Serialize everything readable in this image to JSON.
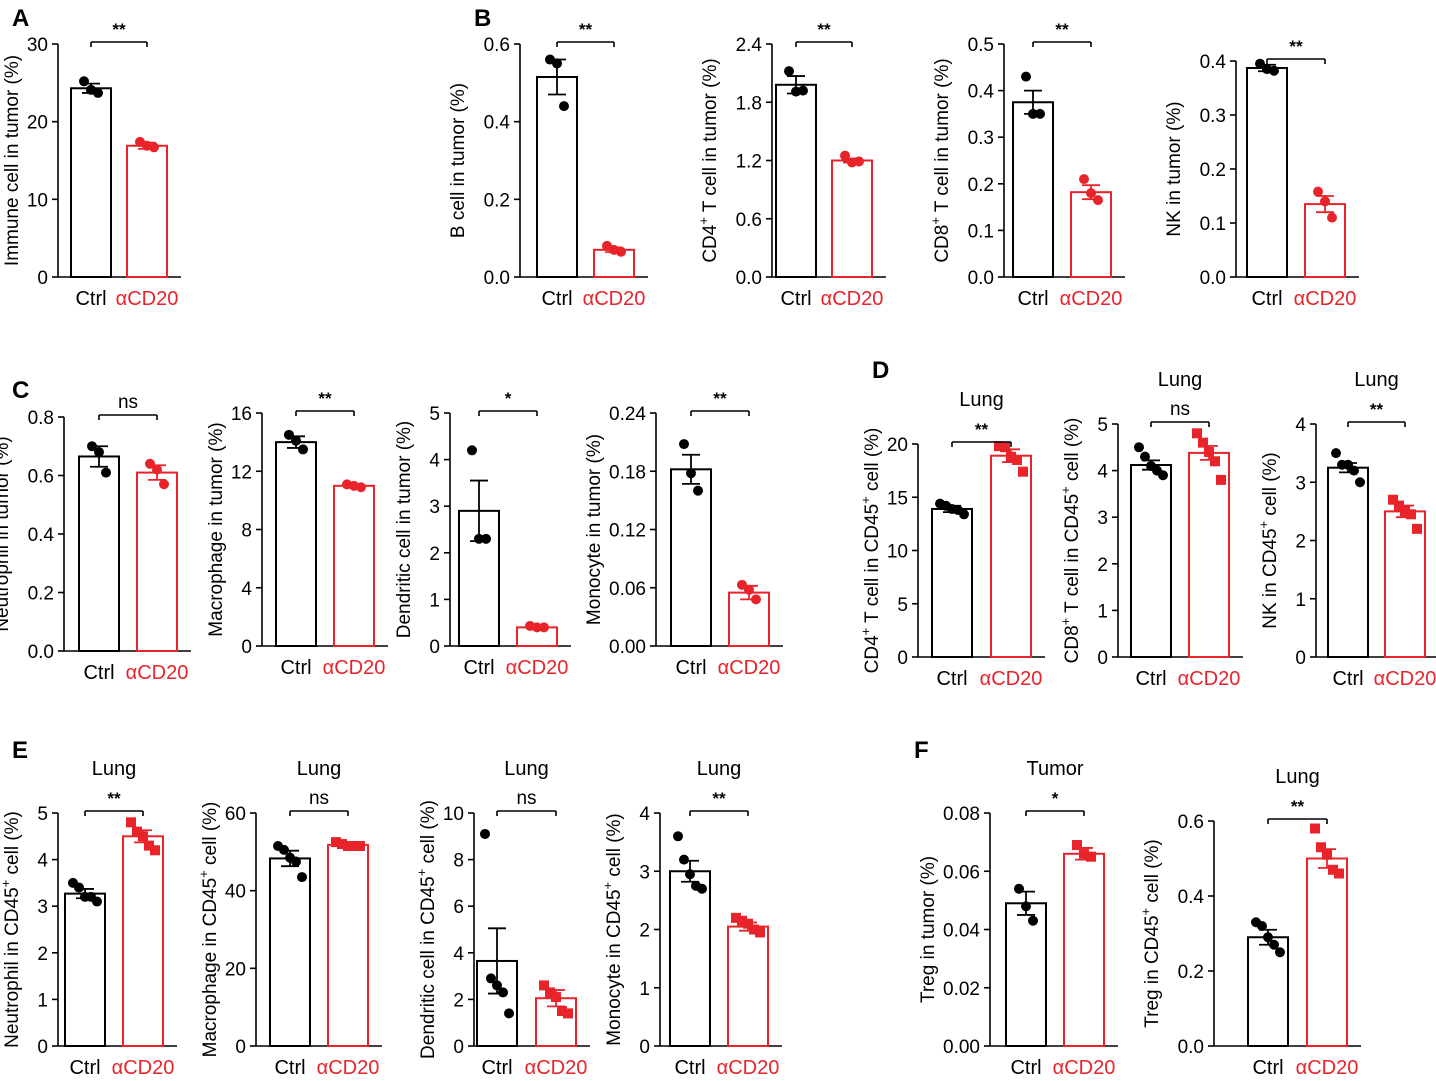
{
  "colors": {
    "ctrl": "#000000",
    "treat": "#e8232a",
    "axis": "#000000"
  },
  "chart_data": [
    {
      "type": "bar",
      "panel": "A",
      "title": "",
      "ylabel": "Immune cell in tumor (%)",
      "ylim": [
        0,
        30
      ],
      "yticks": [
        "0",
        "10",
        "20",
        "30"
      ],
      "categories": [
        "Ctrl",
        "αCD20"
      ],
      "values": [
        24.3,
        16.9
      ],
      "errors": [
        0.6,
        0.4
      ],
      "points": [
        [
          25.2,
          24.1,
          23.7
        ],
        [
          17.4,
          16.9,
          16.7
        ]
      ],
      "point_shape": "circle",
      "significance": "**"
    },
    {
      "type": "bar",
      "panel": "B",
      "title": "",
      "ylabel": "B cell in tumor (%)",
      "ylim": [
        0,
        0.6
      ],
      "yticks": [
        "0.0",
        "0.2",
        "0.4",
        "0.6"
      ],
      "categories": [
        "Ctrl",
        "αCD20"
      ],
      "values": [
        0.515,
        0.07
      ],
      "errors": [
        0.045,
        0.006
      ],
      "points": [
        [
          0.56,
          0.55,
          0.44
        ],
        [
          0.08,
          0.07,
          0.065
        ]
      ],
      "point_shape": "circle",
      "significance": "**"
    },
    {
      "type": "bar",
      "panel": "",
      "title": "",
      "ylabel_main": "CD4",
      "ylabel_sup": "+",
      "ylabel_rest": " T cell in tumor (%)",
      "ylim": [
        0,
        2.4
      ],
      "yticks": [
        "0.0",
        "0.6",
        "1.2",
        "1.8",
        "2.4"
      ],
      "categories": [
        "Ctrl",
        "αCD20"
      ],
      "values": [
        1.98,
        1.2
      ],
      "errors": [
        0.09,
        0.02
      ],
      "points": [
        [
          2.12,
          1.91,
          1.92
        ],
        [
          1.25,
          1.18,
          1.19
        ]
      ],
      "point_shape": "circle",
      "significance": "**"
    },
    {
      "type": "bar",
      "panel": "",
      "title": "",
      "ylabel_main": "CD8",
      "ylabel_sup": "+",
      "ylabel_rest": " T cell in tumor (%)",
      "ylim": [
        0,
        0.5
      ],
      "yticks": [
        "0.0",
        "0.1",
        "0.2",
        "0.3",
        "0.4",
        "0.5"
      ],
      "categories": [
        "Ctrl",
        "αCD20"
      ],
      "values": [
        0.375,
        0.182
      ],
      "errors": [
        0.025,
        0.015
      ],
      "points": [
        [
          0.43,
          0.35,
          0.35
        ],
        [
          0.21,
          0.18,
          0.165
        ]
      ],
      "point_shape": "circle",
      "significance": "**"
    },
    {
      "type": "bar",
      "panel": "",
      "title": "",
      "ylabel": "NK in tumor (%)",
      "ylim": [
        0,
        0.4
      ],
      "yticks": [
        "0.0",
        "0.1",
        "0.2",
        "0.3",
        "0.4"
      ],
      "categories": [
        "Ctrl",
        "αCD20"
      ],
      "values": [
        0.387,
        0.135
      ],
      "errors": [
        0.006,
        0.015
      ],
      "points": [
        [
          0.395,
          0.385,
          0.382
        ],
        [
          0.158,
          0.14,
          0.11
        ]
      ],
      "point_shape": "circle",
      "significance": "**"
    },
    {
      "type": "bar",
      "panel": "C",
      "title": "",
      "ylabel": "Neutrophil in tumor (%)",
      "ylim": [
        0,
        0.8
      ],
      "yticks": [
        "0.0",
        "0.2",
        "0.4",
        "0.6",
        "0.8"
      ],
      "categories": [
        "Ctrl",
        "αCD20"
      ],
      "values": [
        0.665,
        0.61
      ],
      "errors": [
        0.035,
        0.025
      ],
      "points": [
        [
          0.7,
          0.68,
          0.61
        ],
        [
          0.64,
          0.62,
          0.57
        ]
      ],
      "point_shape": "circle",
      "significance": "ns"
    },
    {
      "type": "bar",
      "panel": "",
      "title": "",
      "ylabel": "Macrophage in tumor (%)",
      "ylim": [
        0,
        16
      ],
      "yticks": [
        "0",
        "4",
        "8",
        "12",
        "16"
      ],
      "categories": [
        "Ctrl",
        "αCD20"
      ],
      "values": [
        14.0,
        11.0
      ],
      "errors": [
        0.4,
        0.1
      ],
      "points": [
        [
          14.5,
          14.1,
          13.5
        ],
        [
          11.1,
          11.0,
          10.9
        ]
      ],
      "point_shape": "circle",
      "significance": "**"
    },
    {
      "type": "bar",
      "panel": "",
      "title": "",
      "ylabel": "Dendritic cell in tumor (%)",
      "ylim": [
        0,
        5
      ],
      "yticks": [
        "0",
        "1",
        "2",
        "3",
        "4",
        "5"
      ],
      "categories": [
        "Ctrl",
        "αCD20"
      ],
      "values": [
        2.9,
        0.4
      ],
      "errors": [
        0.65,
        0.03
      ],
      "points": [
        [
          4.2,
          2.3,
          2.3
        ],
        [
          0.43,
          0.4,
          0.4
        ]
      ],
      "point_shape": "circle",
      "significance": "*"
    },
    {
      "type": "bar",
      "panel": "",
      "title": "",
      "ylabel": "Monocyte in tumor (%)",
      "ylim": [
        0,
        0.24
      ],
      "yticks": [
        "0.00",
        "0.06",
        "0.12",
        "0.18",
        "0.24"
      ],
      "categories": [
        "Ctrl",
        "αCD20"
      ],
      "values": [
        0.182,
        0.055
      ],
      "errors": [
        0.015,
        0.007
      ],
      "points": [
        [
          0.208,
          0.178,
          0.16
        ],
        [
          0.063,
          0.058,
          0.048
        ]
      ],
      "point_shape": "circle",
      "significance": "**"
    },
    {
      "type": "bar",
      "panel": "D",
      "title": "Lung",
      "ylabel_main": "CD4",
      "ylabel_sup": "+",
      "ylabel_rest": " T cell in CD45",
      "ylabel_sup2": "+",
      "ylabel_rest2": " cell (%)",
      "ylim": [
        0,
        20
      ],
      "yticks": [
        "0",
        "5",
        "10",
        "15",
        "20"
      ],
      "categories": [
        "Ctrl",
        "αCD20"
      ],
      "values": [
        13.9,
        18.9
      ],
      "errors": [
        0.3,
        0.6
      ],
      "points": [
        [
          14.4,
          14.2,
          13.9,
          13.8,
          13.4
        ],
        [
          19.8,
          19.7,
          18.8,
          18.5,
          17.4
        ]
      ],
      "point_shape": "mixed",
      "significance": "**"
    },
    {
      "type": "bar",
      "panel": "",
      "title": "Lung",
      "ylabel_main": "CD8",
      "ylabel_sup": "+",
      "ylabel_rest": " T cell in CD45",
      "ylabel_sup2": "+",
      "ylabel_rest2": " cell (%)",
      "ylim": [
        0,
        5
      ],
      "yticks": [
        "0",
        "1",
        "2",
        "3",
        "4",
        "5"
      ],
      "categories": [
        "Ctrl",
        "αCD20"
      ],
      "values": [
        4.12,
        4.38
      ],
      "errors": [
        0.1,
        0.15
      ],
      "points": [
        [
          4.5,
          4.3,
          4.1,
          4.0,
          3.9
        ],
        [
          4.8,
          4.6,
          4.4,
          4.2,
          3.8
        ]
      ],
      "point_shape": "mixed",
      "significance": "ns"
    },
    {
      "type": "bar",
      "panel": "",
      "title": "Lung",
      "ylabel_main": "NK in CD45",
      "ylabel_sup": "+",
      "ylabel_rest": " cell (%)",
      "ylim": [
        0,
        4
      ],
      "yticks": [
        "0",
        "1",
        "2",
        "3",
        "4"
      ],
      "categories": [
        "Ctrl",
        "αCD20"
      ],
      "values": [
        3.25,
        2.5
      ],
      "errors": [
        0.08,
        0.1
      ],
      "points": [
        [
          3.5,
          3.3,
          3.3,
          3.2,
          3.0
        ],
        [
          2.7,
          2.6,
          2.5,
          2.45,
          2.2
        ]
      ],
      "point_shape": "mixed",
      "significance": "**"
    },
    {
      "type": "bar",
      "panel": "E",
      "title": "Lung",
      "ylabel_main": "Neutrophil in CD45",
      "ylabel_sup": "+",
      "ylabel_rest": " cell (%)",
      "ylim": [
        0,
        5
      ],
      "yticks": [
        "0",
        "1",
        "2",
        "3",
        "4",
        "5"
      ],
      "categories": [
        "Ctrl",
        "αCD20"
      ],
      "values": [
        3.27,
        4.5
      ],
      "errors": [
        0.1,
        0.13
      ],
      "points": [
        [
          3.5,
          3.4,
          3.2,
          3.2,
          3.1
        ],
        [
          4.8,
          4.6,
          4.5,
          4.3,
          4.2
        ]
      ],
      "point_shape": "mixed",
      "significance": "**"
    },
    {
      "type": "bar",
      "panel": "",
      "title": "Lung",
      "ylabel_main": "Macrophage in CD45",
      "ylabel_sup": "+",
      "ylabel_rest": " cell (%)",
      "ylim": [
        0,
        60
      ],
      "yticks": [
        "0",
        "20",
        "40",
        "60"
      ],
      "categories": [
        "Ctrl",
        "αCD20"
      ],
      "values": [
        48.3,
        51.8
      ],
      "errors": [
        2.0,
        0.5
      ],
      "points": [
        [
          51.5,
          50.5,
          48.5,
          47.5,
          43.5
        ],
        [
          52.5,
          52,
          51.5,
          51.5,
          51.5
        ]
      ],
      "point_shape": "mixed",
      "significance": "ns"
    },
    {
      "type": "bar",
      "panel": "",
      "title": "Lung",
      "ylabel_main": "Dendritic cell in CD45",
      "ylabel_sup": "+",
      "ylabel_rest": " cell (%)",
      "ylim": [
        0,
        10
      ],
      "yticks": [
        "0",
        "2",
        "4",
        "6",
        "8",
        "10"
      ],
      "categories": [
        "Ctrl",
        "αCD20"
      ],
      "values": [
        3.65,
        2.05
      ],
      "errors": [
        1.4,
        0.35
      ],
      "points": [
        [
          9.1,
          2.9,
          2.6,
          2.3,
          1.4
        ],
        [
          2.6,
          2.3,
          2.1,
          1.5,
          1.4
        ]
      ],
      "point_shape": "mixed",
      "significance": "ns"
    },
    {
      "type": "bar",
      "panel": "",
      "title": "Lung",
      "ylabel_main": "Monocyte in CD45",
      "ylabel_sup": "+",
      "ylabel_rest": " cell (%)",
      "ylim": [
        0,
        4
      ],
      "yticks": [
        "0",
        "1",
        "2",
        "3",
        "4"
      ],
      "categories": [
        "Ctrl",
        "αCD20"
      ],
      "values": [
        3.0,
        2.05
      ],
      "errors": [
        0.18,
        0.07
      ],
      "points": [
        [
          3.6,
          3.2,
          2.95,
          2.75,
          2.7
        ],
        [
          2.2,
          2.15,
          2.1,
          2.0,
          1.95
        ]
      ],
      "point_shape": "mixed",
      "significance": "**"
    },
    {
      "type": "bar",
      "panel": "F",
      "title": "Tumor",
      "ylabel": "Treg in tumor (%)",
      "ylim": [
        0,
        0.08
      ],
      "yticks": [
        "0.00",
        "0.02",
        "0.04",
        "0.06",
        "0.08"
      ],
      "categories": [
        "Ctrl",
        "αCD20"
      ],
      "values": [
        0.049,
        0.066
      ],
      "errors": [
        0.004,
        0.002
      ],
      "points": [
        [
          0.054,
          0.048,
          0.043
        ],
        [
          0.069,
          0.066,
          0.065
        ]
      ],
      "point_shape": "mixed",
      "significance": "*"
    },
    {
      "type": "bar",
      "panel": "",
      "title": "Lung",
      "ylabel_main": "Treg in CD45",
      "ylabel_sup": "+",
      "ylabel_rest": " cell (%)",
      "ylim": [
        0,
        0.6
      ],
      "yticks": [
        "0.0",
        "0.2",
        "0.4",
        "0.6"
      ],
      "categories": [
        "Ctrl",
        "αCD20"
      ],
      "values": [
        0.29,
        0.5
      ],
      "errors": [
        0.02,
        0.025
      ],
      "points": [
        [
          0.33,
          0.32,
          0.29,
          0.27,
          0.25
        ],
        [
          0.58,
          0.53,
          0.51,
          0.47,
          0.46
        ]
      ],
      "point_shape": "mixed",
      "significance": "**"
    }
  ]
}
